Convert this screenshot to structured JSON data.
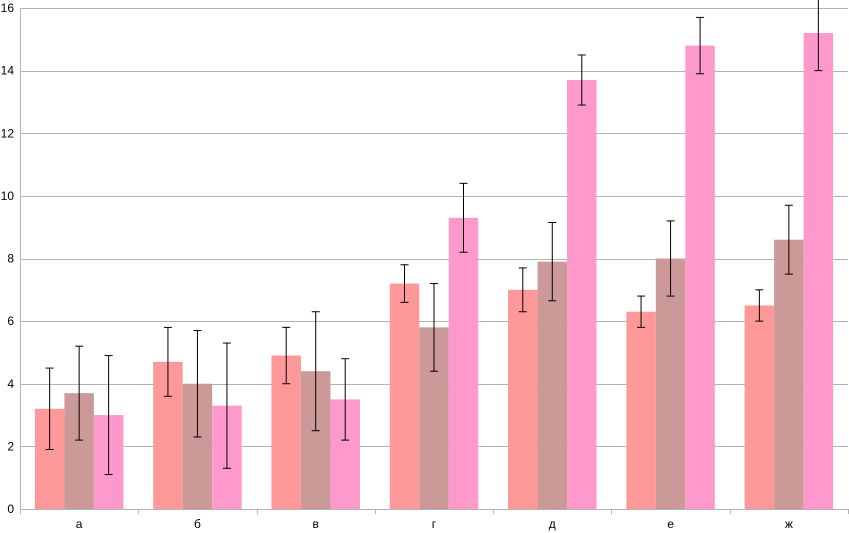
{
  "chart_data": {
    "type": "bar",
    "title": "",
    "xlabel": "",
    "ylabel": "",
    "ylim": [
      0,
      16
    ],
    "yticks": [
      0,
      2,
      4,
      6,
      8,
      10,
      12,
      14,
      16
    ],
    "grid": true,
    "categories": [
      "а",
      "б",
      "в",
      "г",
      "д",
      "е",
      "ж"
    ],
    "series": [
      {
        "color": "#ff9999",
        "values": [
          3.2,
          4.7,
          4.9,
          7.2,
          7.0,
          6.3,
          6.5
        ],
        "errors": [
          1.3,
          1.1,
          0.9,
          0.6,
          0.7,
          0.5,
          0.5
        ]
      },
      {
        "color": "#cc9999",
        "values": [
          3.7,
          4.0,
          4.4,
          5.8,
          7.9,
          8.0,
          8.6
        ],
        "errors": [
          1.5,
          1.7,
          1.9,
          1.4,
          1.25,
          1.2,
          1.1
        ]
      },
      {
        "color": "#ff99cc",
        "values": [
          3.0,
          3.3,
          3.5,
          9.3,
          13.7,
          14.8,
          15.2
        ],
        "errors": [
          1.9,
          2.0,
          1.3,
          1.1,
          0.8,
          0.9,
          1.2
        ]
      }
    ]
  }
}
